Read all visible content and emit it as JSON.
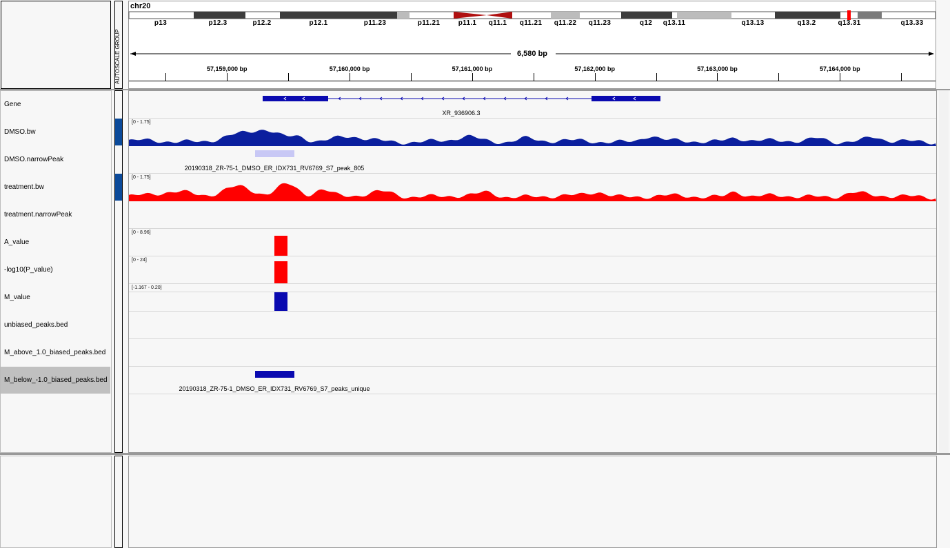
{
  "chromosome": "chr20",
  "autoscale_label": "AUTOSCALE GROUP",
  "ruler": {
    "span_label": "6,580 bp",
    "start_bp": 57158200,
    "end_bp": 57164780,
    "ticks": [
      {
        "bp": 57159000,
        "label": "57,159,000 bp"
      },
      {
        "bp": 57160000,
        "label": "57,160,000 bp"
      },
      {
        "bp": 57161000,
        "label": "57,161,000 bp"
      },
      {
        "bp": 57162000,
        "label": "57,162,000 bp"
      },
      {
        "bp": 57163000,
        "label": "57,163,000 bp"
      },
      {
        "bp": 57164000,
        "label": "57,164,000 bp"
      }
    ]
  },
  "ideogram": {
    "band_labels": [
      "p13",
      "p12.3",
      "p12.2",
      "p12.1",
      "p11.23",
      "p11.21",
      "p11.1",
      "q11.1",
      "q11.21",
      "q11.22",
      "q11.23",
      "q12",
      "q13.11",
      "q13.13",
      "q13.2",
      "q13.31",
      "q13.33"
    ]
  },
  "tracks": [
    {
      "name": "Gene"
    },
    {
      "name": "DMSO.bw",
      "scale": "[0 - 1.75]"
    },
    {
      "name": "DMSO.narrowPeak"
    },
    {
      "name": "treatment.bw",
      "scale": "[0 - 1.75]"
    },
    {
      "name": "treatment.narrowPeak"
    },
    {
      "name": "A_value",
      "scale": "[0 - 8.96]"
    },
    {
      "name": "-log10(P_value)",
      "scale": "[0 - 24]"
    },
    {
      "name": "M_value",
      "scale": "[-1.167 - 0.20]"
    },
    {
      "name": "unbiased_peaks.bed"
    },
    {
      "name": "M_above_1.0_biased_peaks.bed"
    },
    {
      "name": "M_below_-1.0_biased_peaks.bed"
    }
  ],
  "features": {
    "gene_name": "XR_936906.3",
    "dmso_peak_name": "20190318_ZR-75-1_DMSO_ER_IDX731_RV6769_S7_peak_805",
    "biased_peak_name": "20190318_ZR-75-1_DMSO_ER_IDX731_RV6769_S7_peaks_unique"
  },
  "colors": {
    "dmso_signal": "#0b1f9e",
    "treatment_signal": "#ff0000",
    "peak_light": "#c8c8f5",
    "gene": "#0a0ab0",
    "selected_row": "#c0c0c0",
    "attribute_blue": "#0b4a9a"
  }
}
